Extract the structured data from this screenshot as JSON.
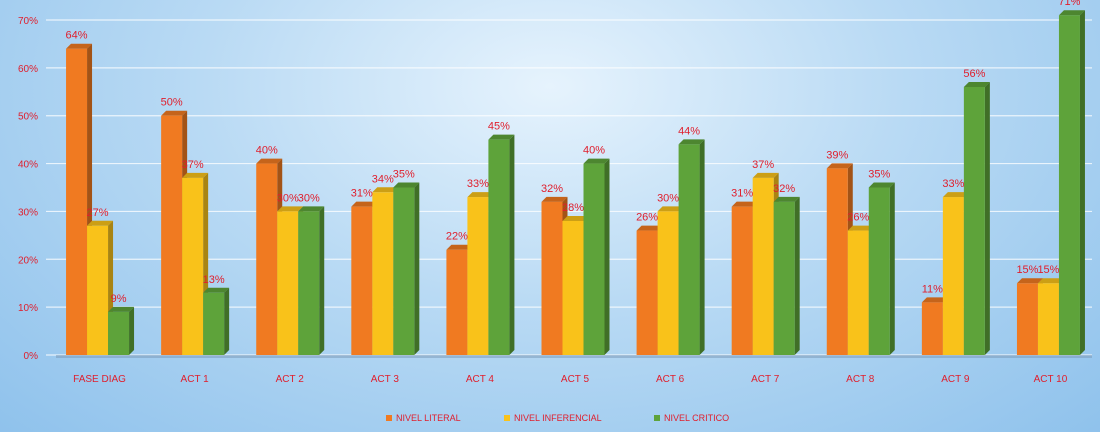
{
  "chart_data": {
    "type": "bar",
    "title": "",
    "xlabel": "",
    "ylabel": "",
    "ylim": [
      0,
      70
    ],
    "yticks": [
      0,
      10,
      20,
      30,
      40,
      50,
      60,
      70
    ],
    "ytick_format": "percent",
    "grid": true,
    "legend_position": "bottom",
    "categories": [
      "FASE DIAG",
      "ACT 1",
      "ACT 2",
      "ACT 3",
      "ACT 4",
      "ACT 5",
      "ACT 6",
      "ACT 7",
      "ACT 8",
      "ACT 9",
      "ACT 10"
    ],
    "series": [
      {
        "name": "NIVEL LITERAL",
        "color": "#f07a21",
        "values": [
          64,
          50,
          40,
          31,
          22,
          32,
          26,
          31,
          39,
          11,
          15
        ]
      },
      {
        "name": "NIVEL INFERENCIAL",
        "color": "#f9c21a",
        "values": [
          27,
          37,
          30,
          34,
          33,
          28,
          30,
          37,
          26,
          33,
          15
        ]
      },
      {
        "name": "NIVEL CRITICO",
        "color": "#5ea33a",
        "values": [
          9,
          13,
          30,
          35,
          45,
          40,
          44,
          32,
          35,
          56,
          71
        ]
      }
    ]
  }
}
